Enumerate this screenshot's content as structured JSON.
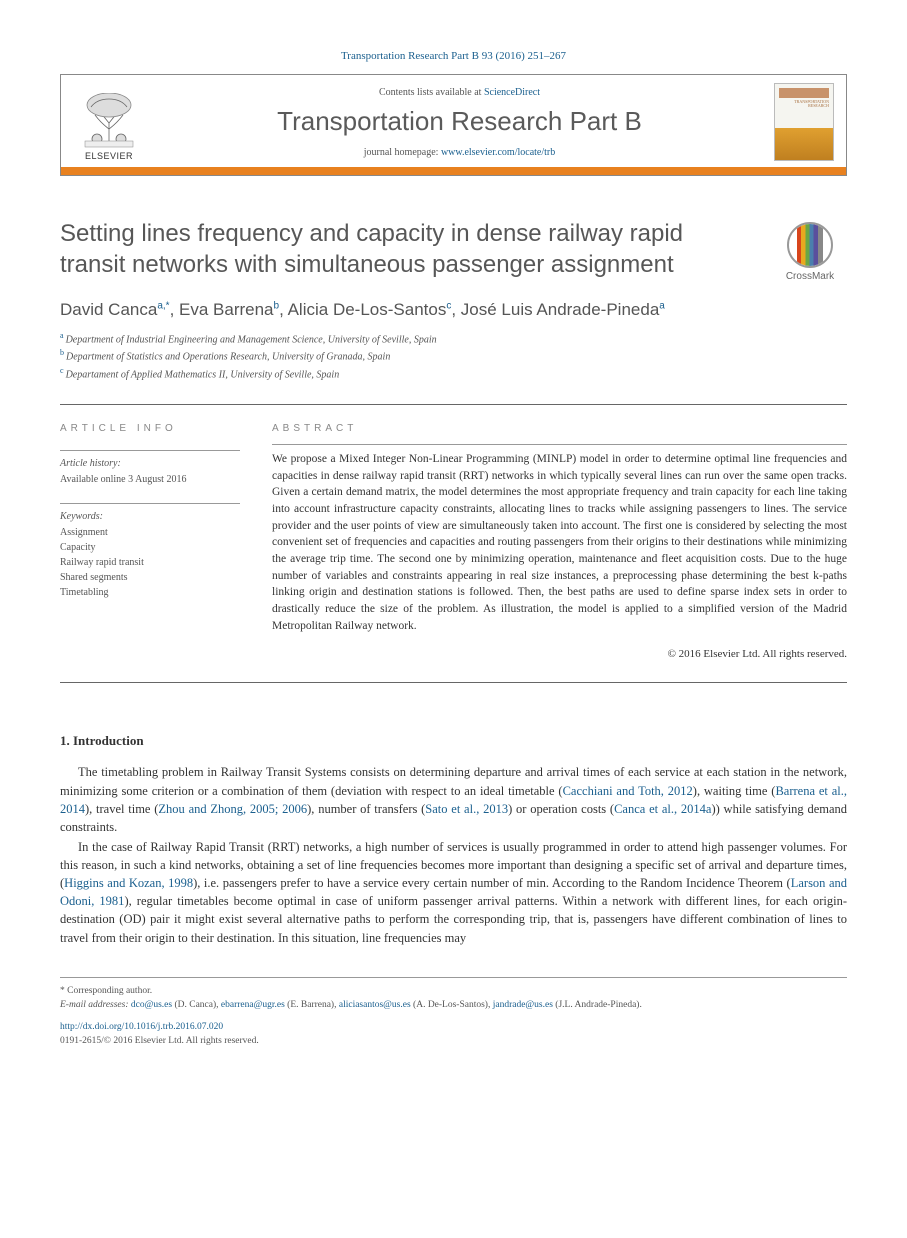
{
  "citation": "Transportation Research Part B 93 (2016) 251–267",
  "header": {
    "contents_prefix": "Contents lists available at ",
    "contents_link": "ScienceDirect",
    "journal_name": "Transportation Research Part B",
    "homepage_prefix": "journal homepage: ",
    "homepage_url": "www.elsevier.com/locate/trb",
    "publisher": "ELSEVIER",
    "cover_title": "TRANSPORTATION RESEARCH"
  },
  "crossmark_label": "CrossMark",
  "title": "Setting lines frequency and capacity in dense railway rapid transit networks with simultaneous passenger assignment",
  "authors_html": "David Canca<sup>a,*</sup>, Eva Barrena<sup>b</sup>, Alicia De-Los-Santos<sup>c</sup>, José Luis Andrade-Pineda<sup>a</sup>",
  "authors": [
    {
      "name": "David Canca",
      "marks": "a,*"
    },
    {
      "name": "Eva Barrena",
      "marks": "b"
    },
    {
      "name": "Alicia De-Los-Santos",
      "marks": "c"
    },
    {
      "name": "José Luis Andrade-Pineda",
      "marks": "a"
    }
  ],
  "affiliations": [
    {
      "mark": "a",
      "text": "Department of Industrial Engineering and Management Science, University of Seville, Spain"
    },
    {
      "mark": "b",
      "text": "Department of Statistics and Operations Research, University of Granada, Spain"
    },
    {
      "mark": "c",
      "text": "Departament of Applied Mathematics II, University of Seville, Spain"
    }
  ],
  "article_info": {
    "label": "ARTICLE INFO",
    "history_label": "Article history:",
    "history_text": "Available online 3 August 2016",
    "keywords_label": "Keywords:",
    "keywords": [
      "Assignment",
      "Capacity",
      "Railway rapid transit",
      "Shared segments",
      "Timetabling"
    ]
  },
  "abstract": {
    "label": "ABSTRACT",
    "text": "We propose a Mixed Integer Non-Linear Programming (MINLP) model in order to determine optimal line frequencies and capacities in dense railway rapid transit (RRT) networks in which typically several lines can run over the same open tracks. Given a certain demand matrix, the model determines the most appropriate frequency and train capacity for each line taking into account infrastructure capacity constraints, allocating lines to tracks while assigning passengers to lines. The service provider and the user points of view are simultaneously taken into account. The first one is considered by selecting the most convenient set of frequencies and capacities and routing passengers from their origins to their destinations while minimizing the average trip time. The second one by minimizing operation, maintenance and fleet acquisition costs. Due to the huge number of variables and constraints appearing in real size instances, a preprocessing phase determining the best k-paths linking origin and destination stations is followed. Then, the best paths are used to define sparse index sets in order to drastically reduce the size of the problem. As illustration, the model is applied to a simplified version of the Madrid Metropolitan Railway network.",
    "copyright": "© 2016 Elsevier Ltd. All rights reserved."
  },
  "intro": {
    "heading": "1. Introduction",
    "para1_pre": "The timetabling problem in Railway Transit Systems consists on determining departure and arrival times of each service at each station in the network, minimizing some criterion or a combination of them (deviation with respect to an ideal timetable (",
    "para1_c1": "Cacchiani and Toth, 2012",
    "para1_m1": "), waiting time (",
    "para1_c2": "Barrena et al., 2014",
    "para1_m2": "), travel time (",
    "para1_c3": "Zhou and Zhong, 2005; 2006",
    "para1_m3": "), number of transfers (",
    "para1_c4": "Sato et al., 2013",
    "para1_m4": ") or operation costs (",
    "para1_c5": "Canca et al., 2014a",
    "para1_post": ")) while satisfying demand constraints.",
    "para2_pre": "In the case of Railway Rapid Transit (RRT) networks, a high number of services is usually programmed in order to attend high passenger volumes. For this reason, in such a kind networks, obtaining a set of line frequencies becomes more important than designing a specific set of arrival and departure times, (",
    "para2_c1": "Higgins and Kozan, 1998",
    "para2_m1": "), i.e. passengers prefer to have a service every certain number of min. According to the Random Incidence Theorem (",
    "para2_c2": "Larson and Odoni, 1981",
    "para2_post": "), regular timetables become optimal in case of uniform passenger arrival patterns. Within a network with different lines, for each origin-destination (OD) pair it might exist several alternative paths to perform the corresponding trip, that is, passengers have different combination of lines to travel from their origin to their destination. In this situation, line frequencies may"
  },
  "footer": {
    "corresponding": "* Corresponding author.",
    "email_label": "E-mail addresses: ",
    "emails": [
      {
        "addr": "dco@us.es",
        "who": "(D. Canca)"
      },
      {
        "addr": "ebarrena@ugr.es",
        "who": "(E. Barrena)"
      },
      {
        "addr": "aliciasantos@us.es",
        "who": "(A. De-Los-Santos)"
      },
      {
        "addr": "jandrade@us.es",
        "who": "(J.L. Andrade-Pineda)"
      }
    ],
    "doi": "http://dx.doi.org/10.1016/j.trb.2016.07.020",
    "issn_line": "0191-2615/© 2016 Elsevier Ltd. All rights reserved."
  },
  "colors": {
    "link": "#1a5f8e",
    "orange_bar": "#e8811f"
  }
}
